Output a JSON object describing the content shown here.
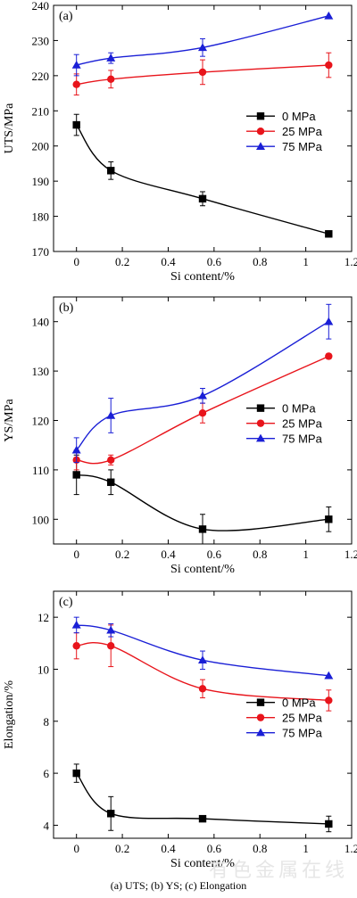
{
  "caption": "(a) UTS; (b) YS; (c) Elongation",
  "watermark": "有色金属在线",
  "chart_data": [
    {
      "type": "line",
      "panel_label": "(a)",
      "xlabel": "Si content/%",
      "ylabel": "UTS/MPa",
      "xlim": [
        -0.1,
        1.2
      ],
      "ylim": [
        170,
        240
      ],
      "xticks": [
        0,
        0.2,
        0.4,
        0.6,
        0.8,
        1.0,
        1.2
      ],
      "yticks": [
        170,
        180,
        190,
        200,
        210,
        220,
        230,
        240
      ],
      "legend_position": "center-right",
      "series": [
        {
          "name": "0 MPa",
          "color": "#000000",
          "marker": "square",
          "x": [
            0,
            0.15,
            0.55,
            1.1
          ],
          "y": [
            206.0,
            193.0,
            185.0,
            175.0
          ],
          "err": [
            3.0,
            2.5,
            2.0,
            0.0
          ]
        },
        {
          "name": "25 MPa",
          "color": "#e8141b",
          "marker": "circle",
          "x": [
            0,
            0.15,
            0.55,
            1.1
          ],
          "y": [
            217.5,
            219.0,
            221.0,
            223.0
          ],
          "err": [
            3.0,
            2.5,
            3.5,
            3.5
          ]
        },
        {
          "name": "75 MPa",
          "color": "#1a1fd6",
          "marker": "triangle",
          "x": [
            0,
            0.15,
            0.55,
            1.1
          ],
          "y": [
            223.0,
            225.0,
            228.0,
            237.0
          ],
          "err": [
            3.0,
            1.5,
            2.5,
            0.0
          ]
        }
      ]
    },
    {
      "type": "line",
      "panel_label": "(b)",
      "xlabel": "Si content/%",
      "ylabel": "YS/MPa",
      "xlim": [
        -0.1,
        1.2
      ],
      "ylim": [
        95,
        145
      ],
      "xticks": [
        0,
        0.2,
        0.4,
        0.6,
        0.8,
        1.0,
        1.2
      ],
      "yticks": [
        100,
        110,
        120,
        130,
        140
      ],
      "legend_position": "center-right",
      "series": [
        {
          "name": "0 MPa",
          "color": "#000000",
          "marker": "square",
          "x": [
            0,
            0.15,
            0.55,
            1.1
          ],
          "y": [
            109.0,
            107.5,
            98.0,
            100.0
          ],
          "err": [
            4.0,
            2.5,
            3.0,
            2.5
          ]
        },
        {
          "name": "25 MPa",
          "color": "#e8141b",
          "marker": "circle",
          "x": [
            0,
            0.15,
            0.55,
            1.1
          ],
          "y": [
            112.0,
            112.0,
            121.5,
            133.0
          ],
          "err": [
            2.0,
            1.0,
            2.0,
            0.5
          ]
        },
        {
          "name": "75 MPa",
          "color": "#1a1fd6",
          "marker": "triangle",
          "x": [
            0,
            0.15,
            0.55,
            1.1
          ],
          "y": [
            114.0,
            121.0,
            125.0,
            140.0
          ],
          "err": [
            2.5,
            3.5,
            1.5,
            3.5
          ]
        }
      ]
    },
    {
      "type": "line",
      "panel_label": "(c)",
      "xlabel": "Si content/%",
      "ylabel": "Elongation/%",
      "xlim": [
        -0.1,
        1.2
      ],
      "ylim": [
        3.5,
        13
      ],
      "xticks": [
        0,
        0.2,
        0.4,
        0.6,
        0.8,
        1.0,
        1.2
      ],
      "yticks": [
        4,
        6,
        8,
        10,
        12
      ],
      "legend_position": "center-right",
      "series": [
        {
          "name": "0 MPa",
          "color": "#000000",
          "marker": "square",
          "x": [
            0,
            0.15,
            0.55,
            1.1
          ],
          "y": [
            6.0,
            4.45,
            4.25,
            4.05
          ],
          "err": [
            0.35,
            0.65,
            0.05,
            0.3
          ]
        },
        {
          "name": "25 MPa",
          "color": "#e8141b",
          "marker": "circle",
          "x": [
            0,
            0.15,
            0.55,
            1.1
          ],
          "y": [
            10.9,
            10.9,
            9.25,
            8.8
          ],
          "err": [
            0.5,
            0.8,
            0.35,
            0.4
          ]
        },
        {
          "name": "75 MPa",
          "color": "#1a1fd6",
          "marker": "triangle",
          "x": [
            0,
            0.15,
            0.55,
            1.1
          ],
          "y": [
            11.7,
            11.5,
            10.35,
            9.75
          ],
          "err": [
            0.3,
            0.25,
            0.35,
            0.0
          ]
        }
      ]
    }
  ]
}
